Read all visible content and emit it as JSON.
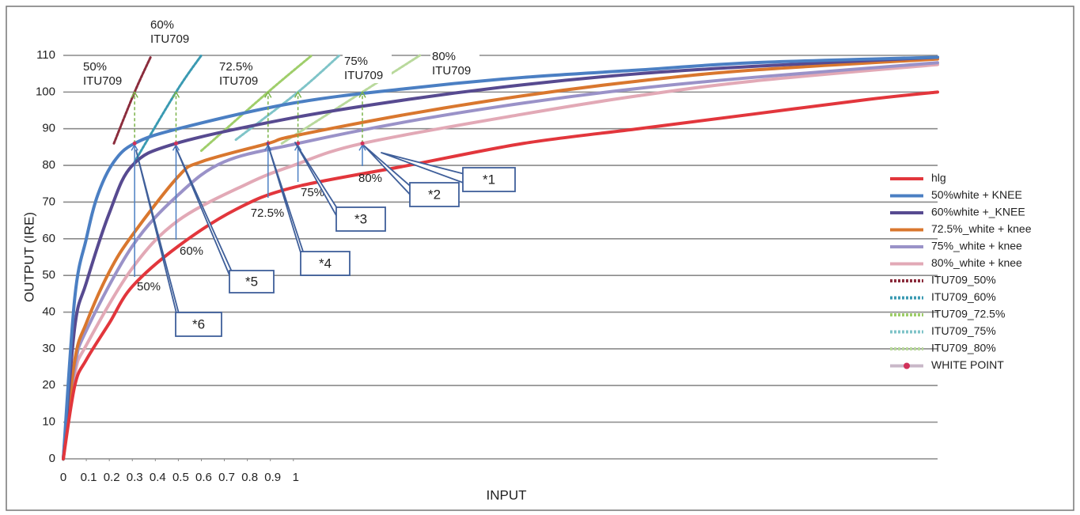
{
  "chart_data": {
    "type": "line",
    "xlabel": "INPUT",
    "ylabel": "OUTPUT (IRE)",
    "xlim": [
      0,
      3.8
    ],
    "xticks": [
      0,
      0.1,
      0.2,
      0.3,
      0.4,
      0.5,
      0.6,
      0.7,
      0.8,
      0.9,
      1
    ],
    "ylim": [
      0,
      110
    ],
    "yticks": [
      0,
      10,
      20,
      30,
      40,
      50,
      60,
      70,
      80,
      90,
      100,
      110
    ],
    "grid": true,
    "legend": "right",
    "series": [
      {
        "name": "hlg",
        "color": "#e2363c",
        "line_style": "solid",
        "x": [
          0,
          0.05,
          0.1,
          0.2,
          0.3,
          0.5,
          0.75,
          1,
          1.5,
          2,
          2.5,
          3,
          3.5,
          3.8
        ],
        "values": [
          0,
          20,
          27,
          37,
          47,
          58,
          68,
          74,
          80,
          86,
          90,
          94,
          98,
          100
        ]
      },
      {
        "name": "50%white + KNEE",
        "color": "#4b7fc3",
        "line_style": "solid",
        "x": [
          0,
          0.05,
          0.1,
          0.15,
          0.22,
          0.31,
          0.5,
          1,
          1.5,
          2,
          2.5,
          3,
          3.8
        ],
        "values": [
          0,
          44,
          60,
          72,
          81,
          86,
          90,
          97,
          101,
          104,
          106,
          108,
          109.5
        ]
      },
      {
        "name": "60%white +_KNEE",
        "color": "#574a90",
        "line_style": "solid",
        "x": [
          0,
          0.05,
          0.1,
          0.2,
          0.3,
          0.49,
          1,
          1.5,
          2,
          2.5,
          3,
          3.8
        ],
        "values": [
          0,
          36,
          48,
          67,
          80,
          86,
          93,
          98,
          102,
          105,
          107,
          109.5
        ]
      },
      {
        "name": "72.5%_white + knee",
        "color": "#d9772e",
        "line_style": "solid",
        "x": [
          0,
          0.05,
          0.1,
          0.2,
          0.3,
          0.5,
          0.6,
          0.89,
          1,
          1.5,
          2,
          2.5,
          3,
          3.8
        ],
        "values": [
          0,
          27,
          37,
          51,
          61,
          77,
          81,
          86,
          88,
          94,
          99,
          103,
          106,
          109
        ]
      },
      {
        "name": "75%_white + knee",
        "color": "#9a92c8",
        "line_style": "solid",
        "x": [
          0,
          0.05,
          0.1,
          0.3,
          0.5,
          0.7,
          1.02,
          1.5,
          2,
          2.5,
          3,
          3.8
        ],
        "values": [
          0,
          25,
          35,
          58,
          72,
          81,
          86,
          92,
          97,
          101,
          104,
          108
        ]
      },
      {
        "name": "80%_white + knee",
        "color": "#e2a9b6",
        "line_style": "solid",
        "x": [
          0,
          0.05,
          0.1,
          0.3,
          0.5,
          0.8,
          1,
          1.3,
          2,
          2.5,
          3,
          3.8
        ],
        "values": [
          0,
          23,
          31,
          52,
          65,
          75,
          80,
          86,
          94,
          99,
          103,
          107.5
        ]
      },
      {
        "name": "ITU709_50%",
        "color": "#8b2c3c",
        "line_style": "dashed",
        "x": [
          0.22,
          0.31,
          0.38
        ],
        "values": [
          86,
          100,
          109.6
        ]
      },
      {
        "name": "ITU709_60%",
        "color": "#3a9ab2",
        "line_style": "dashed",
        "x": [
          0.31,
          0.49,
          0.6
        ],
        "values": [
          81,
          100,
          110
        ]
      },
      {
        "name": "ITU709_72.5%",
        "color": "#9fce6a",
        "line_style": "dashed",
        "x": [
          0.6,
          0.89,
          1.08
        ],
        "values": [
          84,
          100,
          110
        ]
      },
      {
        "name": "ITU709_75%",
        "color": "#7fc4c8",
        "line_style": "dashed",
        "x": [
          0.75,
          1.02,
          1.2
        ],
        "values": [
          87,
          100,
          110
        ]
      },
      {
        "name": "ITU709_80%",
        "color": "#b9d99c",
        "line_style": "dashed",
        "x": [
          0.95,
          1.3,
          1.55
        ],
        "values": [
          86,
          100,
          110
        ]
      }
    ],
    "white_point": {
      "name": "WHITE POINT",
      "color": "#d1325a",
      "line_color": "#c9b8c8",
      "x": [
        0.31,
        0.49,
        0.89,
        1.02,
        1.3
      ],
      "values": [
        86,
        86,
        86,
        86,
        86
      ]
    },
    "itu_labels": [
      [
        "50%",
        "ITU709"
      ],
      [
        "60%",
        "ITU709"
      ],
      [
        "72.5%",
        "ITU709"
      ],
      [
        "75%",
        "ITU709"
      ],
      [
        "80%",
        "ITU709"
      ]
    ],
    "point_labels": [
      "50%",
      "60%",
      "72.5%",
      "75%",
      "80%"
    ],
    "callouts": [
      "*1",
      "*2",
      "*3",
      "*4",
      "*5",
      "*6"
    ]
  }
}
